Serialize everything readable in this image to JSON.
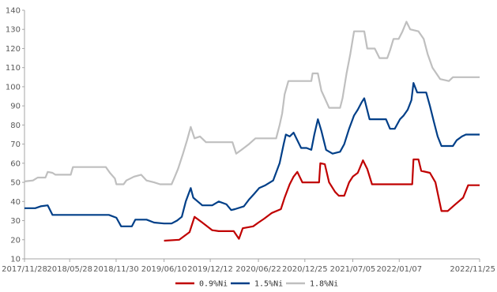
{
  "chart_data": {
    "type": "line",
    "title": "",
    "xlabel": "",
    "ylabel": "",
    "ylim": [
      10,
      140
    ],
    "y_ticks": [
      10,
      20,
      30,
      40,
      50,
      60,
      70,
      80,
      90,
      100,
      110,
      120,
      130,
      140
    ],
    "x_range": [
      "2017-11-28",
      "2022-11-25"
    ],
    "x_ticks": [
      "2017/11/28",
      "2018/05/28",
      "2018/11/30",
      "2019/06/10",
      "2019/12/12",
      "2020/06/22",
      "2020/12/25",
      "2021/07/05",
      "2022/01/07",
      "2022/11/25"
    ],
    "grid": false,
    "legend": "bottom",
    "line_style": "step",
    "series": [
      {
        "name": "0.9%Ni",
        "color": "#C00000",
        "points": [
          [
            "2019-06-10",
            19.5
          ],
          [
            "2019-08-10",
            20.0
          ],
          [
            "2019-09-20",
            24.0
          ],
          [
            "2019-10-10",
            32.0
          ],
          [
            "2019-11-10",
            29.0
          ],
          [
            "2019-12-20",
            25.0
          ],
          [
            "2020-01-15",
            24.5
          ],
          [
            "2020-03-15",
            24.5
          ],
          [
            "2020-04-05",
            20.5
          ],
          [
            "2020-04-20",
            26.0
          ],
          [
            "2020-06-01",
            27.0
          ],
          [
            "2020-06-22",
            29.0
          ],
          [
            "2020-07-15",
            31.0
          ],
          [
            "2020-08-15",
            34.0
          ],
          [
            "2020-09-20",
            36.0
          ],
          [
            "2020-10-05",
            42.0
          ],
          [
            "2020-10-25",
            49.0
          ],
          [
            "2020-11-10",
            53.0
          ],
          [
            "2020-11-25",
            55.5
          ],
          [
            "2020-12-15",
            50.0
          ],
          [
            "2021-02-20",
            50.0
          ],
          [
            "2021-02-25",
            60.0
          ],
          [
            "2021-03-15",
            59.5
          ],
          [
            "2021-04-01",
            50.0
          ],
          [
            "2021-04-25",
            45.0
          ],
          [
            "2021-05-10",
            43.0
          ],
          [
            "2021-06-01",
            43.0
          ],
          [
            "2021-06-20",
            50.0
          ],
          [
            "2021-07-05",
            53.0
          ],
          [
            "2021-07-25",
            55.0
          ],
          [
            "2021-08-15",
            61.5
          ],
          [
            "2021-09-01",
            57.0
          ],
          [
            "2021-09-20",
            49.0
          ],
          [
            "2022-02-28",
            49.0
          ],
          [
            "2022-03-05",
            62.0
          ],
          [
            "2022-03-25",
            62.0
          ],
          [
            "2022-04-05",
            56.0
          ],
          [
            "2022-05-10",
            55.0
          ],
          [
            "2022-06-01",
            50.0
          ],
          [
            "2022-06-25",
            35.0
          ],
          [
            "2022-07-20",
            35.0
          ],
          [
            "2022-08-15",
            38.0
          ],
          [
            "2022-09-20",
            42.0
          ],
          [
            "2022-10-10",
            48.5
          ],
          [
            "2022-11-25",
            48.5
          ]
        ]
      },
      {
        "name": "1.5%Ni",
        "color": "#003F88",
        "points": [
          [
            "2017-11-28",
            36.5
          ],
          [
            "2018-01-10",
            36.5
          ],
          [
            "2018-02-01",
            37.5
          ],
          [
            "2018-03-01",
            38.0
          ],
          [
            "2018-03-20",
            33.0
          ],
          [
            "2018-11-01",
            33.0
          ],
          [
            "2018-12-01",
            31.5
          ],
          [
            "2018-12-20",
            27.0
          ],
          [
            "2019-02-01",
            27.0
          ],
          [
            "2019-02-15",
            30.5
          ],
          [
            "2019-04-01",
            30.5
          ],
          [
            "2019-05-01",
            29.0
          ],
          [
            "2019-06-10",
            28.5
          ],
          [
            "2019-07-10",
            28.5
          ],
          [
            "2019-08-01",
            30.0
          ],
          [
            "2019-08-20",
            32.0
          ],
          [
            "2019-09-05",
            40.0
          ],
          [
            "2019-09-25",
            47.0
          ],
          [
            "2019-10-05",
            42.0
          ],
          [
            "2019-11-10",
            38.0
          ],
          [
            "2019-12-20",
            38.0
          ],
          [
            "2020-01-15",
            40.0
          ],
          [
            "2020-02-15",
            38.5
          ],
          [
            "2020-03-05",
            35.5
          ],
          [
            "2020-03-20",
            36.0
          ],
          [
            "2020-04-25",
            37.5
          ],
          [
            "2020-05-15",
            41.0
          ],
          [
            "2020-06-05",
            44.0
          ],
          [
            "2020-06-25",
            47.0
          ],
          [
            "2020-07-20",
            48.5
          ],
          [
            "2020-08-20",
            51.0
          ],
          [
            "2020-09-15",
            60.0
          ],
          [
            "2020-10-01",
            70.0
          ],
          [
            "2020-10-10",
            75.0
          ],
          [
            "2020-10-25",
            74.0
          ],
          [
            "2020-11-10",
            76.0
          ],
          [
            "2020-12-10",
            68.0
          ],
          [
            "2021-01-01",
            68.0
          ],
          [
            "2021-01-20",
            67.0
          ],
          [
            "2021-02-01",
            75.0
          ],
          [
            "2021-02-15",
            83.0
          ],
          [
            "2021-03-01",
            77.0
          ],
          [
            "2021-03-20",
            67.0
          ],
          [
            "2021-04-15",
            65.0
          ],
          [
            "2021-05-15",
            66.0
          ],
          [
            "2021-06-01",
            70.0
          ],
          [
            "2021-06-20",
            78.0
          ],
          [
            "2021-07-10",
            85.0
          ],
          [
            "2021-07-25",
            88.0
          ],
          [
            "2021-08-10",
            92.0
          ],
          [
            "2021-08-20",
            94.0
          ],
          [
            "2021-09-10",
            83.0
          ],
          [
            "2021-11-15",
            83.0
          ],
          [
            "2021-12-01",
            78.0
          ],
          [
            "2021-12-20",
            78.0
          ],
          [
            "2022-01-10",
            83.0
          ],
          [
            "2022-01-25",
            85.0
          ],
          [
            "2022-02-10",
            88.0
          ],
          [
            "2022-02-25",
            93.0
          ],
          [
            "2022-03-05",
            102.0
          ],
          [
            "2022-03-20",
            97.0
          ],
          [
            "2022-04-25",
            97.0
          ],
          [
            "2022-05-10",
            90.0
          ],
          [
            "2022-05-25",
            82.0
          ],
          [
            "2022-06-10",
            74.0
          ],
          [
            "2022-06-25",
            69.0
          ],
          [
            "2022-08-10",
            69.0
          ],
          [
            "2022-08-25",
            72.0
          ],
          [
            "2022-09-15",
            74.0
          ],
          [
            "2022-10-01",
            75.0
          ],
          [
            "2022-11-25",
            75.0
          ]
        ]
      },
      {
        "name": "1.8%Ni",
        "color": "#BFBFBF",
        "points": [
          [
            "2017-11-28",
            50.5
          ],
          [
            "2018-01-01",
            51.0
          ],
          [
            "2018-01-20",
            52.5
          ],
          [
            "2018-02-20",
            52.5
          ],
          [
            "2018-03-01",
            55.5
          ],
          [
            "2018-03-20",
            55.0
          ],
          [
            "2018-04-01",
            54.0
          ],
          [
            "2018-06-01",
            54.0
          ],
          [
            "2018-06-10",
            58.0
          ],
          [
            "2018-10-20",
            58.0
          ],
          [
            "2018-11-05",
            55.0
          ],
          [
            "2018-11-25",
            52.0
          ],
          [
            "2018-12-01",
            49.0
          ],
          [
            "2018-12-30",
            49.0
          ],
          [
            "2019-01-10",
            51.0
          ],
          [
            "2019-02-10",
            53.0
          ],
          [
            "2019-03-10",
            54.0
          ],
          [
            "2019-04-01",
            51.0
          ],
          [
            "2019-05-01",
            50.0
          ],
          [
            "2019-05-25",
            49.0
          ],
          [
            "2019-07-10",
            49.0
          ],
          [
            "2019-07-20",
            52.0
          ],
          [
            "2019-08-05",
            57.0
          ],
          [
            "2019-08-25",
            65.0
          ],
          [
            "2019-09-10",
            72.0
          ],
          [
            "2019-09-25",
            79.0
          ],
          [
            "2019-10-10",
            73.0
          ],
          [
            "2019-11-01",
            74.0
          ],
          [
            "2019-11-25",
            71.0
          ],
          [
            "2020-03-10",
            71.0
          ],
          [
            "2020-03-25",
            65.0
          ],
          [
            "2020-04-15",
            67.0
          ],
          [
            "2020-05-15",
            70.0
          ],
          [
            "2020-06-10",
            73.0
          ],
          [
            "2020-09-01",
            73.0
          ],
          [
            "2020-09-15",
            80.0
          ],
          [
            "2020-09-25",
            86.0
          ],
          [
            "2020-10-05",
            96.0
          ],
          [
            "2020-10-20",
            103.0
          ],
          [
            "2021-01-20",
            103.0
          ],
          [
            "2021-01-25",
            107.0
          ],
          [
            "2021-02-15",
            107.0
          ],
          [
            "2021-03-01",
            98.0
          ],
          [
            "2021-03-15",
            94.0
          ],
          [
            "2021-04-01",
            89.0
          ],
          [
            "2021-05-15",
            89.0
          ],
          [
            "2021-05-25",
            94.0
          ],
          [
            "2021-06-10",
            107.0
          ],
          [
            "2021-06-25",
            117.0
          ],
          [
            "2021-07-10",
            129.0
          ],
          [
            "2021-08-20",
            129.0
          ],
          [
            "2021-09-01",
            120.0
          ],
          [
            "2021-10-01",
            120.0
          ],
          [
            "2021-10-20",
            115.0
          ],
          [
            "2021-11-20",
            115.0
          ],
          [
            "2021-12-01",
            119.0
          ],
          [
            "2021-12-15",
            125.0
          ],
          [
            "2022-01-05",
            125.0
          ],
          [
            "2022-01-20",
            129.0
          ],
          [
            "2022-02-05",
            134.0
          ],
          [
            "2022-02-20",
            130.0
          ],
          [
            "2022-03-25",
            129.0
          ],
          [
            "2022-04-15",
            125.0
          ],
          [
            "2022-05-01",
            117.0
          ],
          [
            "2022-05-20",
            110.0
          ],
          [
            "2022-06-20",
            104.0
          ],
          [
            "2022-07-25",
            103.0
          ],
          [
            "2022-08-10",
            105.0
          ],
          [
            "2022-11-25",
            105.0
          ]
        ]
      }
    ]
  }
}
